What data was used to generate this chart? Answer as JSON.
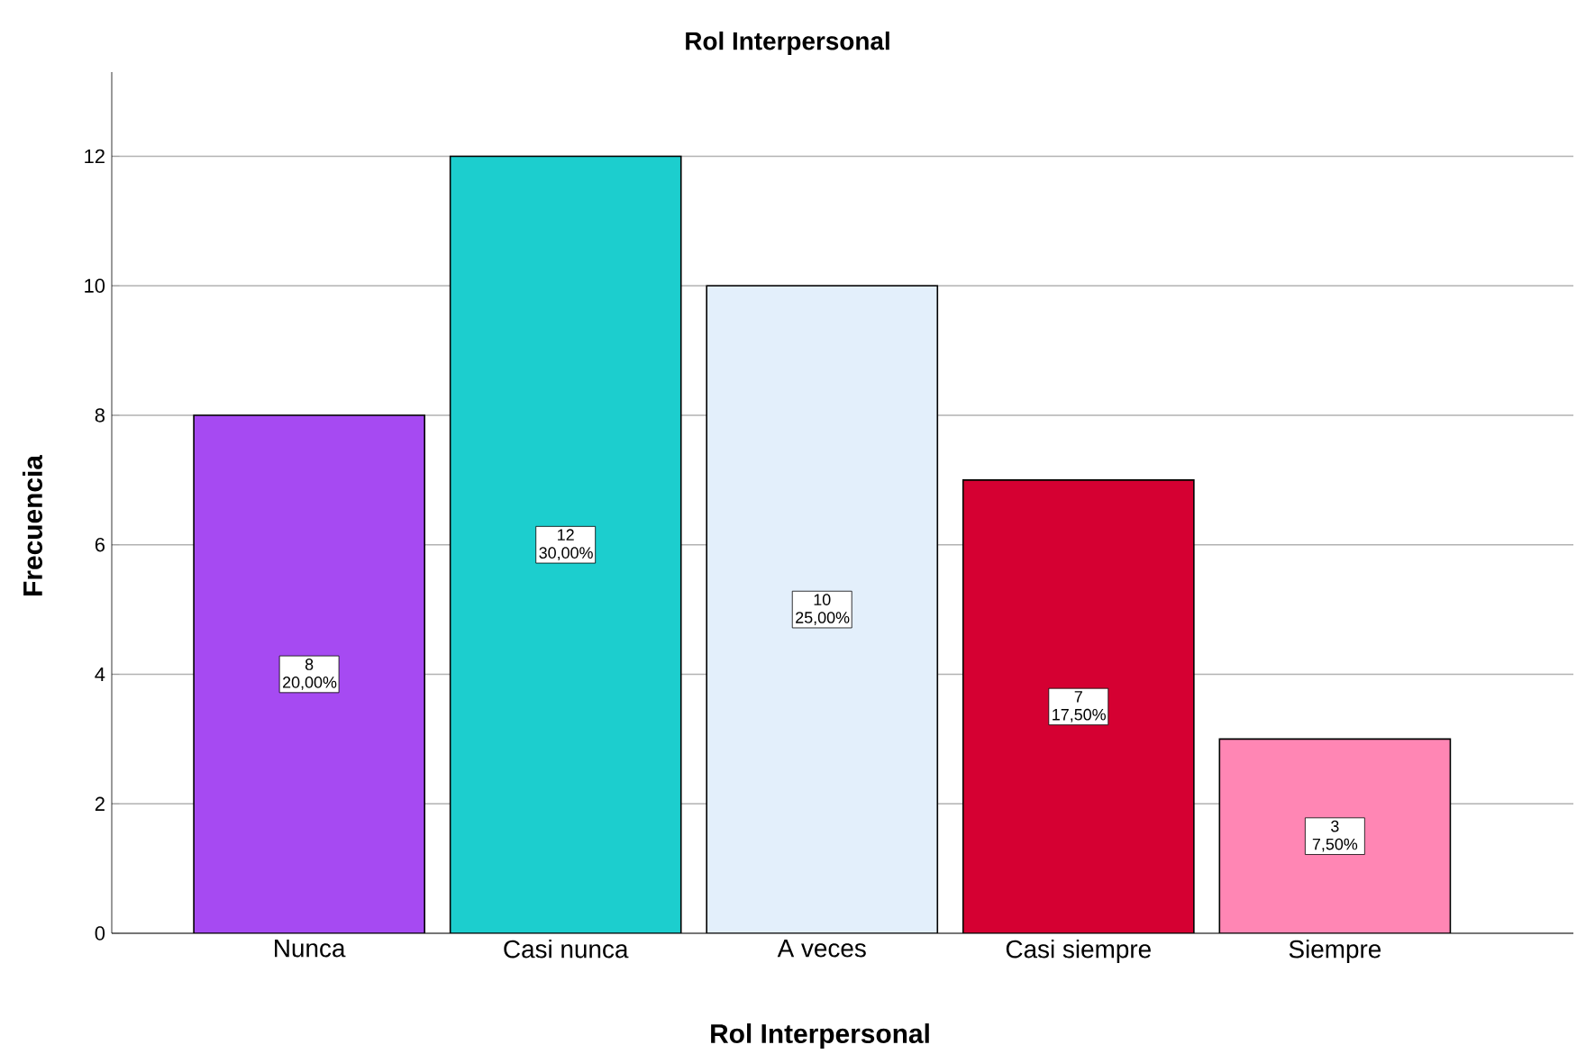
{
  "chart_data": {
    "type": "bar",
    "title": "Rol Interpersonal",
    "xlabel": "Rol Interpersonal",
    "ylabel": "Frecuencia",
    "categories": [
      "Nunca",
      "Casi nunca",
      "A veces",
      "Casi siempre",
      "Siempre"
    ],
    "values": [
      8,
      12,
      10,
      7,
      3
    ],
    "colors": [
      "#a64af2",
      "#1ccece",
      "#e3effb",
      "#d50032",
      "#ff86b4"
    ],
    "value_labels": [
      "8 20,00%",
      "12 30,00%",
      "10 25,00%",
      "7 17,50%",
      "3 7,50%"
    ],
    "ylim": [
      0,
      13.3
    ],
    "yticks": [
      0,
      2,
      4,
      6,
      8,
      10,
      12
    ],
    "grid": "y"
  }
}
